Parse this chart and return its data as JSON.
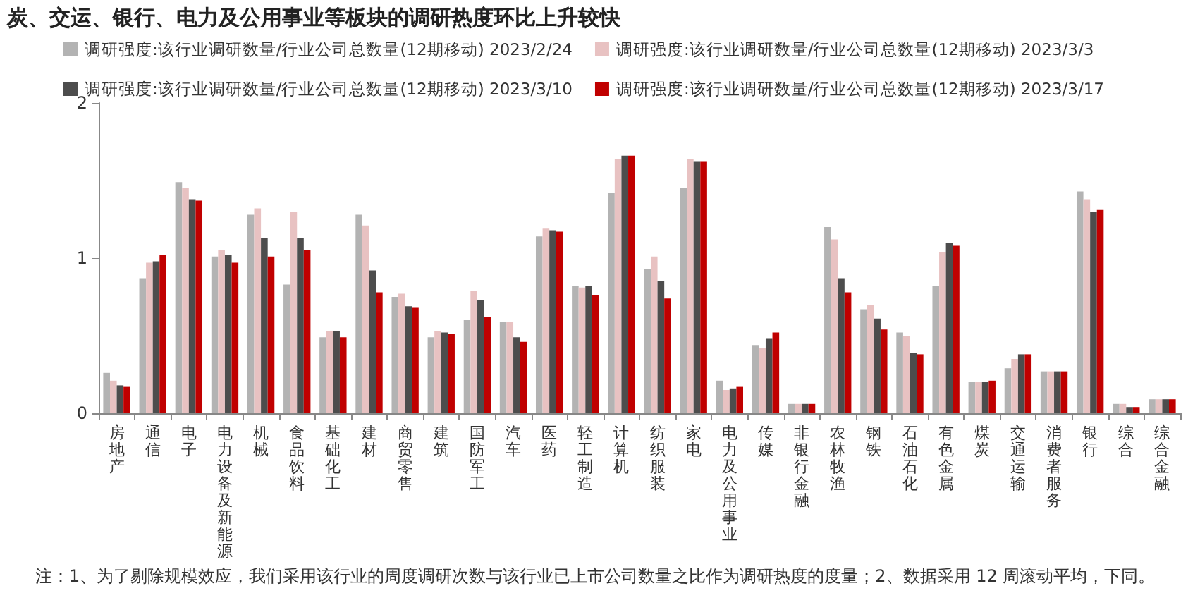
{
  "chart_data": {
    "type": "bar",
    "title": "炭、交运、银行、电力及公用事业等板块的调研热度环比上升较快",
    "categories": [
      "房地产",
      "通信",
      "电子",
      "电力设备及新能源",
      "机械",
      "食品饮料",
      "基础化工",
      "建材",
      "商贸零售",
      "建筑",
      "国防军工",
      "汽车",
      "医药",
      "轻工制造",
      "计算机",
      "纺织服装",
      "家电",
      "电力及公用事业",
      "传媒",
      "非银行金融",
      "农林牧渔",
      "钢铁",
      "石油石化",
      "有色金属",
      "煤炭",
      "交通运输",
      "消费者服务",
      "银行",
      "综合",
      "综合金融"
    ],
    "series": [
      {
        "name": "调研强度:该行业调研数量/行业公司总数量(12期移动) 2023/2/24",
        "color": "#b3b3b3",
        "values": [
          0.26,
          0.87,
          1.49,
          1.01,
          1.28,
          0.83,
          0.49,
          1.28,
          0.75,
          0.49,
          0.6,
          0.59,
          1.14,
          0.82,
          1.42,
          0.93,
          1.45,
          0.21,
          0.44,
          0.06,
          1.2,
          0.67,
          0.52,
          0.82,
          0.2,
          0.29,
          0.27,
          1.43,
          0.06,
          0.09
        ]
      },
      {
        "name": "调研强度:该行业调研数量/行业公司总数量(12期移动) 2023/3/3",
        "color": "#e8c2c2",
        "values": [
          0.21,
          0.97,
          1.45,
          1.05,
          1.32,
          1.3,
          0.53,
          1.21,
          0.77,
          0.53,
          0.79,
          0.59,
          1.19,
          0.81,
          1.64,
          1.01,
          1.64,
          0.15,
          0.42,
          0.06,
          1.12,
          0.7,
          0.5,
          1.04,
          0.2,
          0.35,
          0.27,
          1.38,
          0.06,
          0.09
        ]
      },
      {
        "name": "调研强度:该行业调研数量/行业公司总数量(12期移动) 2023/3/10",
        "color": "#4d4d4d",
        "values": [
          0.18,
          0.98,
          1.38,
          1.02,
          1.13,
          1.13,
          0.53,
          0.92,
          0.69,
          0.52,
          0.73,
          0.49,
          1.18,
          0.82,
          1.66,
          0.85,
          1.62,
          0.16,
          0.48,
          0.06,
          0.87,
          0.61,
          0.39,
          1.1,
          0.2,
          0.38,
          0.27,
          1.3,
          0.04,
          0.09
        ]
      },
      {
        "name": "调研强度:该行业调研数量/行业公司总数量(12期移动) 2023/3/17",
        "color": "#c00000",
        "values": [
          0.17,
          1.02,
          1.37,
          0.97,
          1.01,
          1.05,
          0.49,
          0.78,
          0.68,
          0.51,
          0.62,
          0.46,
          1.17,
          0.76,
          1.66,
          0.74,
          1.62,
          0.17,
          0.52,
          0.06,
          0.78,
          0.54,
          0.38,
          1.08,
          0.21,
          0.38,
          0.27,
          1.31,
          0.04,
          0.09
        ]
      }
    ],
    "ylim": [
      0,
      2
    ],
    "yticks": [
      0,
      1,
      2
    ],
    "grid": false,
    "legend": "top",
    "annotations": [
      "注：1、为了剔除规模效应，我们采用该行业的周度调研次数与该行业已上市公司数量之比作为调研热度的度量；2、数据采用 12 周滚动平均，下同。"
    ]
  }
}
